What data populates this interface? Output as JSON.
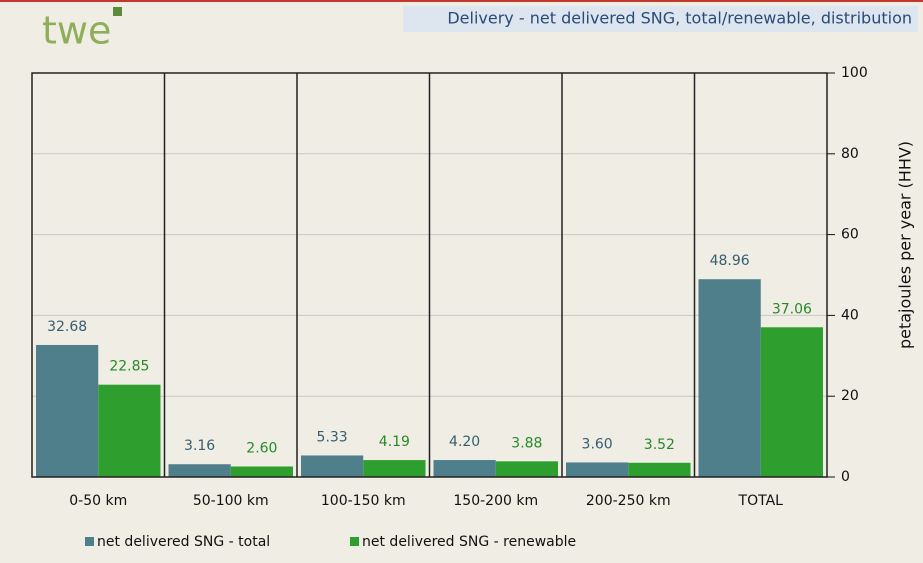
{
  "logo": "twe",
  "chart_data": {
    "type": "bar",
    "title": "Delivery - net delivered SNG, total/renewable, distribution",
    "y_label": "petajoules per year (HHV)",
    "categories": [
      "0-50 km",
      "50-100 km",
      "100-150 km",
      "150-200 km",
      "200-250 km",
      "TOTAL"
    ],
    "series": [
      {
        "name": "net delivered SNG - total",
        "color": "#4f7f8b",
        "label_color": "#355f6e",
        "values": [
          32.68,
          3.16,
          5.33,
          4.2,
          3.6,
          48.96
        ],
        "value_labels": [
          "32.68",
          "3.16",
          "5.33",
          "4.20",
          "3.60",
          "48.96"
        ]
      },
      {
        "name": "net delivered SNG - renewable",
        "color": "#2e9f2e",
        "label_color": "#268a26",
        "values": [
          22.85,
          2.6,
          4.19,
          3.88,
          3.52,
          37.06
        ],
        "value_labels": [
          "22.85",
          "2.60",
          "4.19",
          "3.88",
          "3.52",
          "37.06"
        ]
      }
    ],
    "ylim": [
      0,
      100
    ],
    "yticks": [
      0,
      20,
      40,
      60,
      80,
      100
    ],
    "grid": true,
    "y_axis_side": "right"
  }
}
